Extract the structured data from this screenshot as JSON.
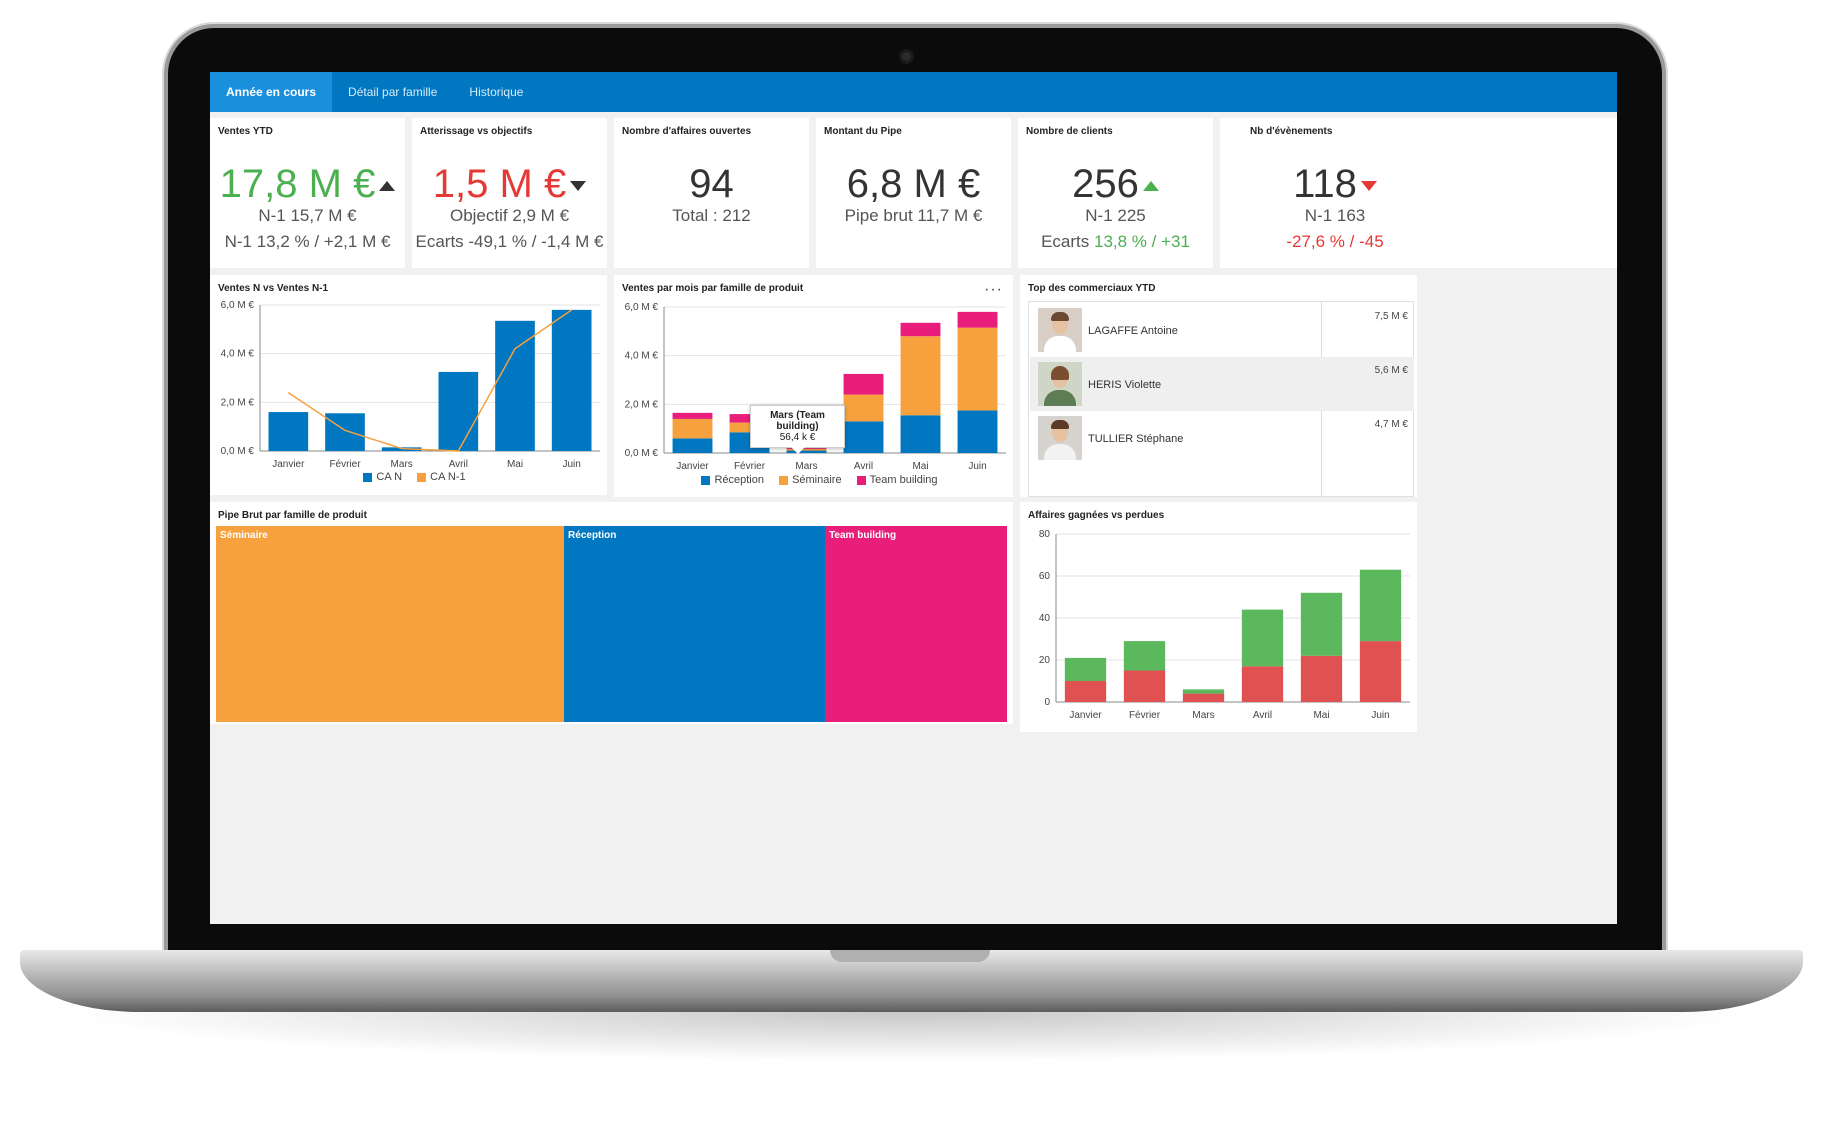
{
  "tabs": [
    {
      "label": "Année en cours",
      "active": true
    },
    {
      "label": "Détail par famille",
      "active": false
    },
    {
      "label": "Historique",
      "active": false
    }
  ],
  "kpis": {
    "ventes_ytd": {
      "title": "Ventes YTD",
      "value": "17,8 M €",
      "line1": "N-1 15,7 M €",
      "line2": "N-1 13,2 % / +2,1 M €",
      "trend": "up"
    },
    "atterrissage": {
      "title": "Atterissage vs objectifs",
      "value": "1,5 M €",
      "line1": "Objectif 2,9 M €",
      "line2": "Ecarts -49,1 % / -1,4 M €",
      "trend": "down"
    },
    "affaires": {
      "title": "Nombre d'affaires ouvertes",
      "value": "94",
      "line1": "Total : 212"
    },
    "pipe": {
      "title": "Montant du Pipe",
      "value": "6,8 M €",
      "line1": "Pipe brut 11,7 M €"
    },
    "clients": {
      "title": "Nombre de clients",
      "value": "256",
      "line1": "N-1 225",
      "line2_prefix": "Ecarts",
      "line2_value": "13,8 % / +31",
      "trend": "up"
    },
    "evenements": {
      "title": "Nb d'évènements",
      "value": "118",
      "line1": "N-1 163",
      "line2": "-27,6 % / -45",
      "trend": "down"
    }
  },
  "chart_data": [
    {
      "type": "bar",
      "title": "Ventes N vs Ventes N-1",
      "categories": [
        "Janvier",
        "Février",
        "Mars",
        "Avril",
        "Mai",
        "Juin"
      ],
      "yticks": [
        "0,0 M €",
        "2,0 M €",
        "4,0 M €",
        "6,0 M €"
      ],
      "ylim": [
        0,
        6
      ],
      "series": [
        {
          "name": "CA N",
          "type": "bar",
          "color": "#0077c0",
          "values": [
            1.6,
            1.55,
            0.15,
            3.25,
            5.35,
            5.8
          ]
        },
        {
          "name": "CA N-1",
          "type": "line",
          "color": "#f7a13e",
          "values": [
            2.4,
            0.85,
            0.1,
            0.0,
            4.2,
            5.8
          ]
        }
      ],
      "legend": "bottom"
    },
    {
      "type": "bar",
      "title": "Ventes par mois par famille de produit",
      "stacked": true,
      "categories": [
        "Janvier",
        "Février",
        "Mars",
        "Avril",
        "Mai",
        "Juin"
      ],
      "yticks": [
        "0,0 M €",
        "2,0 M €",
        "4,0 M €",
        "6,0 M €"
      ],
      "ylim": [
        0,
        6
      ],
      "series": [
        {
          "name": "Réception",
          "color": "#0077c0",
          "values": [
            0.6,
            0.85,
            0.1,
            1.3,
            1.55,
            1.75
          ]
        },
        {
          "name": "Séminaire",
          "color": "#f7a13e",
          "values": [
            0.8,
            0.4,
            0.07,
            1.1,
            3.25,
            3.4
          ]
        },
        {
          "name": "Team building",
          "color": "#e91e7a",
          "values": [
            0.25,
            0.35,
            0.06,
            0.85,
            0.55,
            0.65
          ]
        }
      ],
      "tooltip": {
        "title": "Mars (Team building)",
        "value": "56,4 k €"
      },
      "legend": "bottom"
    },
    {
      "type": "bar",
      "title": "Affaires gagnées vs perdues",
      "stacked": true,
      "categories": [
        "Janvier",
        "Février",
        "Mars",
        "Avril",
        "Mai",
        "Juin"
      ],
      "yticks": [
        "0",
        "20",
        "40",
        "60",
        "80"
      ],
      "ylim": [
        0,
        80
      ],
      "series": [
        {
          "color": "#e05252",
          "values": [
            10,
            15,
            4,
            17,
            22,
            29
          ]
        },
        {
          "color": "#5cb85c",
          "values": [
            11,
            14,
            2,
            27,
            30,
            34
          ]
        }
      ]
    }
  ],
  "top_commerciaux": {
    "title": "Top des commerciaux YTD",
    "rows": [
      {
        "name": "LAGAFFE Antoine",
        "value": "7,5 M €"
      },
      {
        "name": "HERIS Violette",
        "value": "5,6 M €"
      },
      {
        "name": "TULLIER Stéphane",
        "value": "4,7 M €"
      }
    ]
  },
  "treemap": {
    "title": "Pipe Brut par famille de produit",
    "items": [
      {
        "label": "Séminaire",
        "color": "#f7a13e",
        "share": 0.44
      },
      {
        "label": "Réception",
        "color": "#0077c0",
        "share": 0.33
      },
      {
        "label": "Team building",
        "color": "#e91e7a",
        "share": 0.23
      }
    ]
  },
  "more_icon": "more-horizontal-icon"
}
